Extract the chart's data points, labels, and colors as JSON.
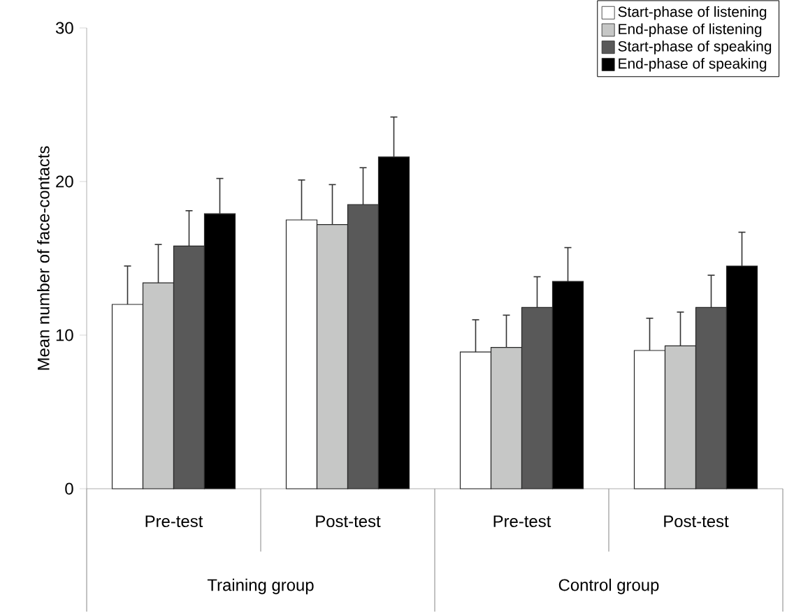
{
  "chart_data": {
    "type": "bar",
    "ylabel": "Mean number of face-contacts",
    "categories": [
      "Pre-test",
      "Post-test",
      "Pre-test",
      "Post-test"
    ],
    "series": [
      {
        "name": "Start-phase of listening",
        "color": "#ffffff",
        "values": [
          12.0,
          17.5,
          8.9,
          9.0
        ],
        "errors": [
          2.5,
          2.6,
          2.1,
          2.1
        ]
      },
      {
        "name": "End-phase of listening",
        "color": "#c6c7c6",
        "values": [
          13.4,
          17.2,
          9.2,
          9.3
        ],
        "errors": [
          2.5,
          2.6,
          2.1,
          2.2
        ]
      },
      {
        "name": "Start-phase of speaking",
        "color": "#595959",
        "values": [
          15.8,
          18.5,
          11.8,
          11.8
        ],
        "errors": [
          2.3,
          2.4,
          2.0,
          2.1
        ]
      },
      {
        "name": "End-phase of speaking",
        "color": "#000000",
        "values": [
          17.9,
          21.6,
          13.5,
          14.5
        ],
        "errors": [
          2.3,
          2.6,
          2.2,
          2.2
        ]
      }
    ],
    "annotations": [
      "Training group",
      "Control group"
    ],
    "ylim": [
      0,
      30
    ],
    "yticks": [
      0,
      10,
      20,
      30
    ],
    "grid": false,
    "legend": "top right"
  }
}
